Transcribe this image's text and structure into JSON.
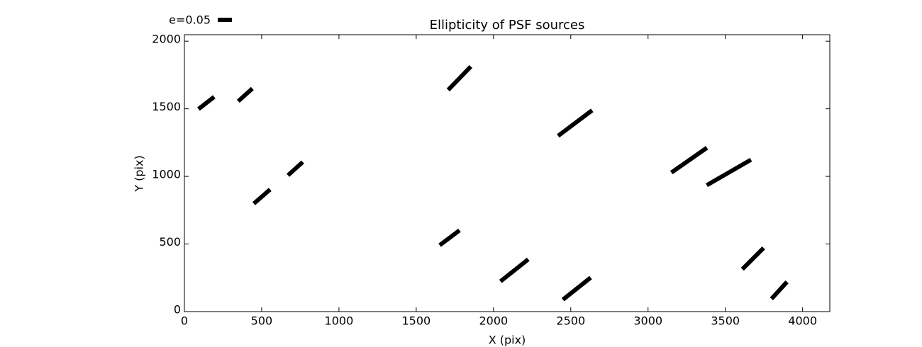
{
  "chart_data": {
    "type": "whisker",
    "title": "Ellipticity of PSF sources",
    "xlabel": "X (pix)",
    "ylabel": "Y (pix)",
    "key": {
      "value": 0.05,
      "label": "e=0.05"
    },
    "color": "#000000",
    "x": [
      142,
      394,
      1780,
      2528,
      3266,
      3523,
      718,
      502,
      1716,
      2135,
      2539,
      3679,
      3849
    ],
    "y": [
      1543,
      1603,
      1726,
      1394,
      1120,
      1029,
      1057,
      851,
      546,
      305,
      170,
      392,
      157
    ],
    "e": [
      0.07,
      0.067,
      0.115,
      0.15,
      0.153,
      0.18,
      0.07,
      0.076,
      0.0875,
      0.125,
      0.125,
      0.106,
      0.081
    ],
    "angle": [
      38,
      42,
      46,
      37,
      35,
      30,
      42,
      41,
      37,
      38.5,
      38.5,
      45,
      47.5
    ],
    "xlim": [
      0,
      4176
    ],
    "ylim": [
      0,
      2048
    ],
    "xticks": [
      0,
      500,
      1000,
      1500,
      2000,
      2500,
      3000,
      3500,
      4000
    ],
    "yticks": [
      0,
      500,
      1000,
      1500,
      2000
    ]
  }
}
